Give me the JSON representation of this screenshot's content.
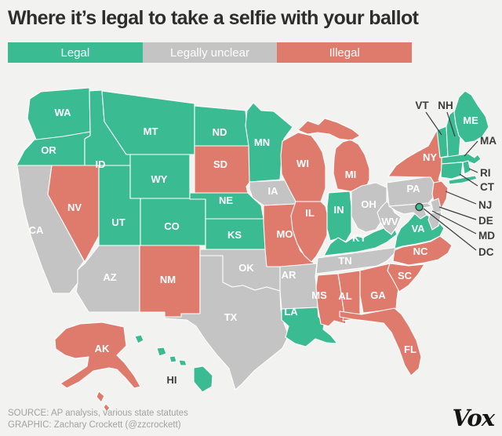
{
  "title": "Where it’s legal to take a selfie with your ballot",
  "legend": {
    "items": [
      {
        "label": "Legal",
        "status": "legal"
      },
      {
        "label": "Legally unclear",
        "status": "unclear"
      },
      {
        "label": "Illegal",
        "status": "illegal"
      }
    ]
  },
  "colors": {
    "legal": "#3bbb92",
    "unclear": "#c4c4c4",
    "illegal": "#de7b6d",
    "page_background": "#f2f2f0",
    "state_border": "#ffffff",
    "state_label": "#ffffff",
    "outside_label": "#3c3c3c",
    "title_text": "#2d2d2d",
    "footer_text": "#a2a2a2",
    "brand_text": "#151515"
  },
  "map": {
    "states": [
      {
        "abbr": "CA",
        "status": "unclear"
      },
      {
        "abbr": "NV",
        "status": "illegal"
      },
      {
        "abbr": "OR",
        "status": "legal"
      },
      {
        "abbr": "WA",
        "status": "legal"
      },
      {
        "abbr": "ID",
        "status": "legal"
      },
      {
        "abbr": "MT",
        "status": "legal"
      },
      {
        "abbr": "WY",
        "status": "legal"
      },
      {
        "abbr": "UT",
        "status": "legal"
      },
      {
        "abbr": "CO",
        "status": "legal"
      },
      {
        "abbr": "AZ",
        "status": "unclear"
      },
      {
        "abbr": "NM",
        "status": "illegal"
      },
      {
        "abbr": "ND",
        "status": "legal"
      },
      {
        "abbr": "SD",
        "status": "illegal"
      },
      {
        "abbr": "NE",
        "status": "legal"
      },
      {
        "abbr": "KS",
        "status": "legal"
      },
      {
        "abbr": "OK",
        "status": "unclear"
      },
      {
        "abbr": "TX",
        "status": "unclear"
      },
      {
        "abbr": "MN",
        "status": "legal"
      },
      {
        "abbr": "IA",
        "status": "unclear"
      },
      {
        "abbr": "MO",
        "status": "illegal"
      },
      {
        "abbr": "AR",
        "status": "unclear"
      },
      {
        "abbr": "LA",
        "status": "legal"
      },
      {
        "abbr": "WI",
        "status": "illegal"
      },
      {
        "abbr": "IL",
        "status": "illegal"
      },
      {
        "abbr": "MI",
        "status": "illegal"
      },
      {
        "abbr": "IN",
        "status": "legal"
      },
      {
        "abbr": "OH",
        "status": "unclear"
      },
      {
        "abbr": "KY",
        "status": "legal"
      },
      {
        "abbr": "TN",
        "status": "unclear"
      },
      {
        "abbr": "MS",
        "status": "illegal"
      },
      {
        "abbr": "AL",
        "status": "illegal"
      },
      {
        "abbr": "GA",
        "status": "illegal"
      },
      {
        "abbr": "FL",
        "status": "illegal"
      },
      {
        "abbr": "SC",
        "status": "illegal"
      },
      {
        "abbr": "NC",
        "status": "illegal"
      },
      {
        "abbr": "VA",
        "status": "legal"
      },
      {
        "abbr": "WV",
        "status": "unclear"
      },
      {
        "abbr": "PA",
        "status": "unclear"
      },
      {
        "abbr": "NY",
        "status": "illegal"
      },
      {
        "abbr": "NJ",
        "status": "illegal"
      },
      {
        "abbr": "DE",
        "status": "unclear"
      },
      {
        "abbr": "MD",
        "status": "unclear"
      },
      {
        "abbr": "VT",
        "status": "legal"
      },
      {
        "abbr": "NH",
        "status": "legal"
      },
      {
        "abbr": "ME",
        "status": "legal"
      },
      {
        "abbr": "MA",
        "status": "legal"
      },
      {
        "abbr": "CT",
        "status": "legal"
      },
      {
        "abbr": "RI",
        "status": "legal"
      },
      {
        "abbr": "AK",
        "status": "illegal"
      },
      {
        "abbr": "HI",
        "status": "legal"
      },
      {
        "abbr": "DC",
        "status": "legal"
      }
    ],
    "callout_states": [
      "VT",
      "NH",
      "MA",
      "RI",
      "CT",
      "NJ",
      "DE",
      "MD",
      "DC"
    ]
  },
  "footer": {
    "source": "SOURCE: AP analysis, various state statutes",
    "graphic": "GRAPHIC: Zachary Crockett (@zzcrockett)",
    "brand": "Vox"
  }
}
